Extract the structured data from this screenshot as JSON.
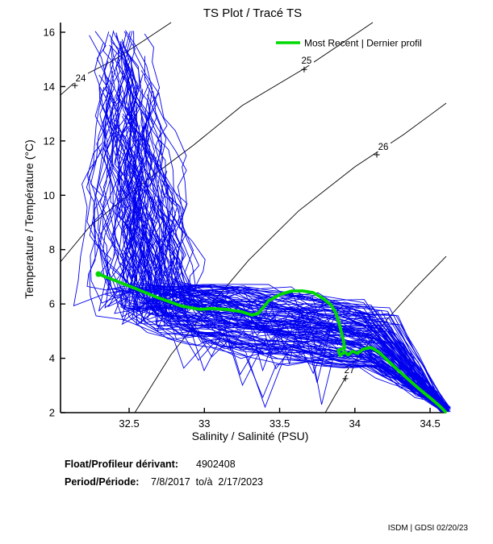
{
  "figure": {
    "title": "TS Plot / Tracé TS"
  },
  "chart_data": {
    "type": "line",
    "title": "TS Plot / Tracé TS",
    "xlabel": "Salinity / Salinité (PSU)",
    "ylabel": "Temperature / Température (°C)",
    "xlim": [
      32.044,
      34.607
    ],
    "ylim": [
      2,
      16.356
    ],
    "x_ticks": [
      32.5,
      33,
      33.5,
      34,
      34.5
    ],
    "x_tick_labels": [
      "32.5",
      "33",
      "33.5",
      "34",
      "34.5"
    ],
    "y_ticks": [
      2,
      4,
      6,
      8,
      10,
      12,
      14,
      16
    ],
    "y_tick_labels": [
      "2",
      "4",
      "6",
      "8",
      "10",
      "12",
      "14",
      "16"
    ],
    "grid": false,
    "legend": {
      "label": "Most Recent | Dernier profil",
      "position": "top-right"
    },
    "colors": {
      "profile_cloud": "#0000EE",
      "most_recent": "#00D800",
      "contours": "#000000"
    },
    "isopycnal_contours": [
      {
        "sigma_t": "24",
        "points": [
          [
            32.044,
            13.69
          ],
          [
            32.178,
            14.35
          ],
          [
            32.393,
            14.96
          ],
          [
            32.6,
            15.7
          ],
          [
            32.779,
            16.36
          ]
        ],
        "label_at": [
          32.178,
          14.31
        ],
        "plus_at": [
          32.14,
          14.04
        ]
      },
      {
        "sigma_t": "25",
        "points": [
          [
            32.044,
            7.55
          ],
          [
            32.243,
            8.88
          ],
          [
            32.607,
            10.51
          ],
          [
            32.929,
            11.85
          ],
          [
            33.251,
            13.3
          ],
          [
            33.663,
            14.66
          ],
          [
            34.039,
            16.06
          ],
          [
            34.119,
            16.36
          ]
        ],
        "label_at": [
          33.679,
          14.96
        ],
        "plus_at": [
          33.663,
          14.63
        ]
      },
      {
        "sigma_t": "26",
        "points": [
          [
            32.538,
            2.0
          ],
          [
            32.779,
            4.14
          ],
          [
            33.036,
            5.92
          ],
          [
            33.294,
            7.61
          ],
          [
            33.626,
            9.42
          ],
          [
            34.001,
            11.05
          ],
          [
            34.323,
            12.23
          ],
          [
            34.5,
            12.95
          ],
          [
            34.607,
            13.39
          ]
        ],
        "label_at": [
          34.189,
          11.79
        ],
        "plus_at": [
          34.146,
          11.49
        ]
      },
      {
        "sigma_t": "27",
        "points": [
          [
            33.803,
            2.0
          ],
          [
            33.867,
            2.62
          ],
          [
            33.916,
            3.07
          ],
          [
            33.985,
            3.78
          ],
          [
            34.066,
            4.37
          ],
          [
            34.216,
            5.44
          ],
          [
            34.403,
            6.6
          ],
          [
            34.607,
            7.75
          ]
        ],
        "label_at": [
          33.964,
          3.57
        ],
        "plus_at": [
          33.937,
          3.25
        ]
      }
    ],
    "most_recent_profile": {
      "name": "Most Recent | Dernier profil",
      "points_s_t": [
        [
          32.296,
          7.1
        ],
        [
          32.393,
          6.89
        ],
        [
          32.527,
          6.6
        ],
        [
          32.688,
          6.24
        ],
        [
          32.849,
          5.92
        ],
        [
          32.972,
          5.8
        ],
        [
          33.047,
          5.83
        ],
        [
          33.143,
          5.8
        ],
        [
          33.251,
          5.71
        ],
        [
          33.315,
          5.59
        ],
        [
          33.358,
          5.65
        ],
        [
          33.428,
          6.12
        ],
        [
          33.508,
          6.36
        ],
        [
          33.583,
          6.48
        ],
        [
          33.653,
          6.48
        ],
        [
          33.722,
          6.42
        ],
        [
          33.787,
          6.21
        ],
        [
          33.84,
          5.97
        ],
        [
          33.873,
          5.68
        ],
        [
          33.894,
          5.32
        ],
        [
          33.91,
          4.97
        ],
        [
          33.926,
          4.61
        ],
        [
          33.932,
          4.37
        ],
        [
          33.89,
          4.3
        ],
        [
          33.902,
          4.1
        ],
        [
          33.932,
          4.24
        ],
        [
          33.955,
          4.12
        ],
        [
          33.985,
          4.26
        ],
        [
          34.017,
          4.18
        ],
        [
          34.055,
          4.34
        ],
        [
          34.108,
          4.4
        ],
        [
          34.162,
          4.22
        ],
        [
          34.216,
          3.93
        ],
        [
          34.28,
          3.6
        ],
        [
          34.35,
          3.25
        ],
        [
          34.43,
          2.86
        ],
        [
          34.51,
          2.5
        ],
        [
          34.564,
          2.24
        ],
        [
          34.602,
          2.03
        ]
      ]
    },
    "profile_cloud": {
      "description": "dense bundle of historical TS profiles (blue spaghetti)",
      "count": 115,
      "seed": 11,
      "surface_t_range": [
        8.0,
        16.25
      ],
      "surface_s_range": [
        32.1,
        32.8
      ],
      "band_t_range": [
        3.95,
        6.55
      ],
      "deep_point_s_t": [
        34.6,
        2.1
      ]
    }
  },
  "footer": {
    "float_label": "Float/Profileur dérivant:",
    "float_value": "4902408",
    "period_label": "Period/Période:",
    "period_value": "7/8/2017  to/à  2/17/2023",
    "credit": "ISDM | GDSI 02/20/23"
  }
}
